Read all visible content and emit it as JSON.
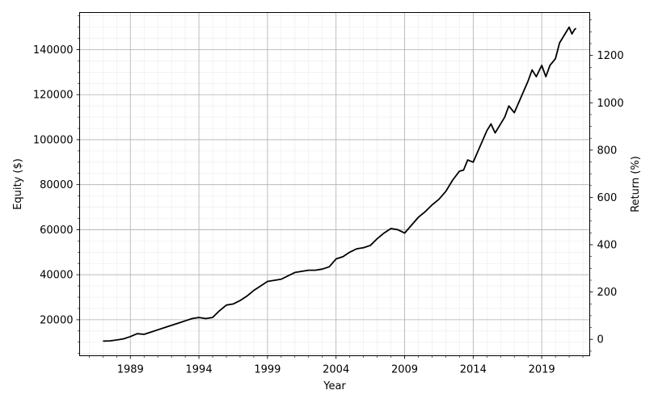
{
  "chart_data": {
    "type": "line",
    "title": "",
    "xlabel": "Year",
    "ylabel": "Equity ($)",
    "y2label": "Return (%)",
    "grid": true,
    "minor_grid": true,
    "xlim": [
      1985.3,
      2022.5
    ],
    "ylim": [
      4000,
      156500
    ],
    "y2lim": [
      -69.2,
      1381.5
    ],
    "x_ticks": [
      "1989",
      "1994",
      "1999",
      "2004",
      "2009",
      "2014",
      "2019"
    ],
    "y_ticks": [
      "20000",
      "40000",
      "60000",
      "80000",
      "100000",
      "120000",
      "140000"
    ],
    "y2_ticks": [
      "0",
      "200",
      "400",
      "600",
      "800",
      "1000",
      "1200"
    ],
    "series": [
      {
        "color": "#000000",
        "x": [
          1987.0,
          1987.5,
          1988.0,
          1988.5,
          1989.0,
          1989.5,
          1990.0,
          1990.5,
          1991.0,
          1991.5,
          1992.0,
          1992.5,
          1993.0,
          1993.5,
          1994.0,
          1994.5,
          1995.0,
          1995.5,
          1996.0,
          1996.5,
          1997.0,
          1997.5,
          1998.0,
          1998.5,
          1999.0,
          1999.5,
          2000.0,
          2000.5,
          2001.0,
          2001.5,
          2002.0,
          2002.5,
          2003.0,
          2003.5,
          2004.0,
          2004.5,
          2005.0,
          2005.5,
          2006.0,
          2006.5,
          2007.0,
          2007.5,
          2008.0,
          2008.5,
          2009.0,
          2009.5,
          2010.0,
          2010.5,
          2011.0,
          2011.5,
          2012.0,
          2012.5,
          2013.0,
          2013.3,
          2013.6,
          2014.0,
          2014.5,
          2015.0,
          2015.3,
          2015.6,
          2016.0,
          2016.3,
          2016.6,
          2017.0,
          2017.5,
          2018.0,
          2018.3,
          2018.6,
          2019.0,
          2019.3,
          2019.6,
          2020.0,
          2020.3,
          2020.6,
          2021.0,
          2021.2,
          2021.4,
          2021.5
        ],
        "y": [
          10500,
          10600,
          11000,
          11500,
          12500,
          13800,
          13500,
          14500,
          15500,
          16500,
          17500,
          18500,
          19500,
          20500,
          21000,
          20500,
          21000,
          24000,
          26500,
          27000,
          28500,
          30500,
          33000,
          35000,
          37000,
          37500,
          38000,
          39500,
          41000,
          41500,
          42000,
          42000,
          42500,
          43500,
          47000,
          48000,
          50000,
          51500,
          52000,
          53000,
          56000,
          58500,
          60500,
          60000,
          58500,
          62000,
          65500,
          68000,
          71000,
          73500,
          77000,
          82000,
          86000,
          86500,
          91000,
          90000,
          97000,
          104000,
          107000,
          103000,
          107000,
          110000,
          115000,
          112000,
          119000,
          126000,
          131000,
          128000,
          133000,
          128000,
          133000,
          136000,
          143000,
          146000,
          150000,
          147000,
          149000,
          149500
        ]
      }
    ]
  }
}
